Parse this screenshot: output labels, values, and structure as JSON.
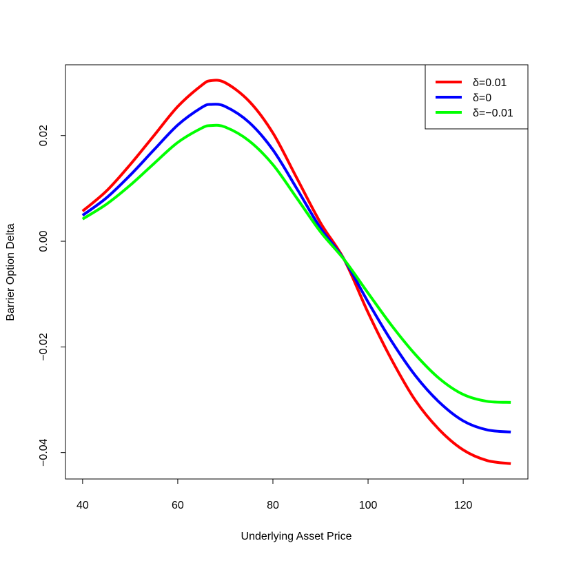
{
  "chart_data": {
    "type": "line",
    "title": "",
    "xlabel": "Underlying Asset Price",
    "ylabel": "Barrier Option Delta",
    "xlim": [
      36.4,
      133.6
    ],
    "ylim": [
      -0.045,
      0.0334
    ],
    "xticks": [
      40,
      60,
      80,
      100,
      120
    ],
    "xtick_labels": [
      "40",
      "60",
      "80",
      "100",
      "120"
    ],
    "yticks": [
      -0.04,
      -0.02,
      0.0,
      0.02
    ],
    "ytick_labels": [
      "-0.04",
      "-0.02",
      "0.00",
      "0.02"
    ],
    "grid": false,
    "legend_position": "top-right",
    "x": [
      40,
      45,
      50,
      55,
      60,
      65,
      67,
      70,
      75,
      80,
      85,
      90,
      95,
      100,
      105,
      110,
      115,
      120,
      125,
      130
    ],
    "series": [
      {
        "name": "δ=0.01",
        "color": "#ff0000",
        "values": [
          0.0057,
          0.0095,
          0.0145,
          0.02,
          0.0255,
          0.0295,
          0.0304,
          0.03,
          0.0265,
          0.0205,
          0.012,
          0.0035,
          -0.0035,
          -0.0135,
          -0.0225,
          -0.0302,
          -0.0357,
          -0.0395,
          -0.0415,
          -0.0421
        ]
      },
      {
        "name": "δ=0",
        "color": "#0000ff",
        "values": [
          0.0049,
          0.0082,
          0.0125,
          0.0173,
          0.022,
          0.0253,
          0.0259,
          0.0255,
          0.0225,
          0.0173,
          0.01,
          0.0025,
          -0.0035,
          -0.0115,
          -0.019,
          -0.0255,
          -0.0305,
          -0.034,
          -0.0357,
          -0.0361
        ]
      },
      {
        "name": "δ=−0.01",
        "color": "#00ff00",
        "values": [
          0.0042,
          0.007,
          0.0106,
          0.0147,
          0.0187,
          0.0214,
          0.0219,
          0.0216,
          0.019,
          0.0145,
          0.0082,
          0.0018,
          -0.0035,
          -0.0098,
          -0.016,
          -0.0215,
          -0.026,
          -0.029,
          -0.0303,
          -0.0305
        ]
      }
    ]
  }
}
